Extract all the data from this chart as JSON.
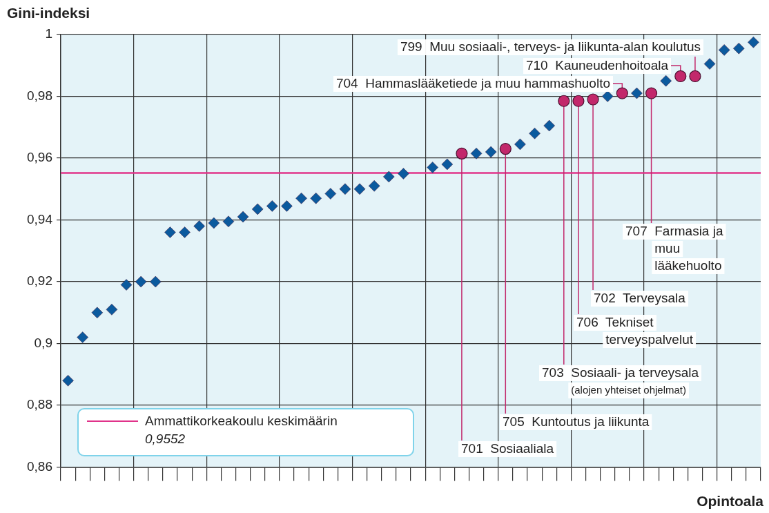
{
  "chart_data": {
    "type": "scatter",
    "ylabel": "Gini-indeksi",
    "xlabel": "Opintoala",
    "categories": [
      null,
      null,
      null,
      null,
      null,
      null,
      null,
      null,
      null,
      null,
      null,
      null,
      null,
      null,
      null,
      null,
      null,
      null,
      null,
      null,
      null,
      null,
      null,
      null,
      null,
      null,
      null,
      null,
      null,
      null,
      null,
      null,
      null,
      null,
      null,
      null,
      null,
      null,
      null,
      null,
      null,
      null,
      null,
      null,
      null,
      null,
      null,
      null
    ],
    "series": [
      {
        "color": "#0b5a9e",
        "marker": "diamond",
        "values": [
          0.888,
          0.902,
          0.91,
          0.911,
          0.919,
          0.92,
          0.92,
          0.936,
          0.936,
          0.938,
          0.939,
          0.9395,
          0.941,
          0.9435,
          0.9445,
          0.9445,
          0.947,
          0.947,
          0.9485,
          0.95,
          0.95,
          0.951,
          0.954,
          0.955,
          null,
          0.957,
          0.958,
          null,
          0.9615,
          0.962,
          null,
          0.9645,
          0.968,
          0.9705,
          null,
          null,
          null,
          0.98,
          null,
          0.981,
          null,
          0.985,
          null,
          null,
          0.9905,
          0.995,
          0.9955,
          0.9975
        ]
      },
      {
        "color": "#c2286b",
        "marker": "circle",
        "values": [
          null,
          null,
          null,
          null,
          null,
          null,
          null,
          null,
          null,
          null,
          null,
          null,
          null,
          null,
          null,
          null,
          null,
          null,
          null,
          null,
          null,
          null,
          null,
          null,
          null,
          null,
          null,
          0.9615,
          null,
          null,
          0.963,
          null,
          null,
          null,
          0.9785,
          0.9785,
          0.979,
          null,
          0.981,
          null,
          0.981,
          null,
          0.9865,
          0.9865,
          null,
          null,
          null,
          null
        ]
      }
    ],
    "ylim": [
      0.86,
      1
    ],
    "yticks": [
      {
        "value": 0.86,
        "label": "0,86"
      },
      {
        "value": 0.88,
        "label": "0,88"
      },
      {
        "value": 0.9,
        "label": "0,9"
      },
      {
        "value": 0.92,
        "label": "0,92"
      },
      {
        "value": 0.94,
        "label": "0,94"
      },
      {
        "value": 0.96,
        "label": "0,96"
      },
      {
        "value": 0.98,
        "label": "0,98"
      },
      {
        "value": 1,
        "label": "1"
      }
    ],
    "grid": true,
    "ref_lines": [
      {
        "axis": "y",
        "value": 0.9552,
        "label": "Ammattikorkeakoulu keskimäärin",
        "color": "#e0338a"
      }
    ],
    "annotations": [
      "799  Muu sosiaali-, terveys- ja liikunta-alan koulutus",
      "710  Kauneudenhoitoala",
      "704  Hammaslääketiede ja muu hammashuolto",
      "707  Farmasia ja\nmuu\nlääkehuolto",
      "702  Terveysala",
      "706  Tekniset\nterveyspalvelut",
      "703  Sosiaali- ja terveysala\n(alojen yhteiset ohjelmat)",
      "705  Kuntoutus ja liikunta",
      "701  Sosiaaliala",
      "0,9552"
    ]
  }
}
